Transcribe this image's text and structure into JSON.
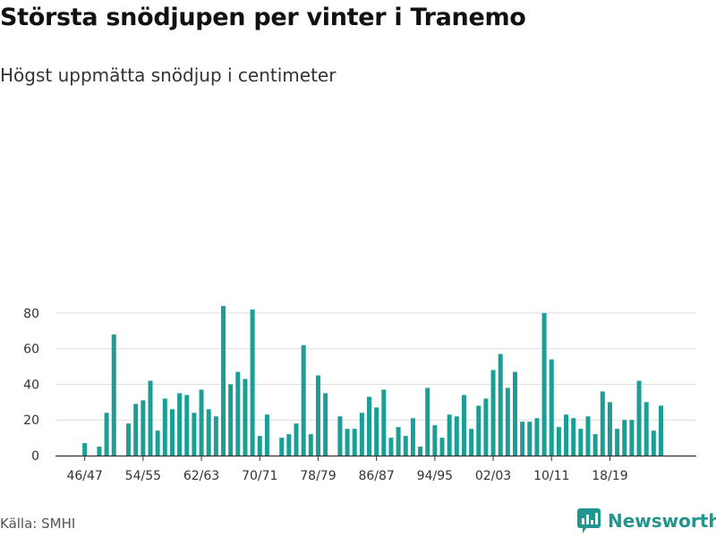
{
  "title": "Största snödjupen per vinter i Tranemo",
  "subtitle": "Högst uppmätta snödjup i centimeter",
  "source": "Källa: SMHI",
  "brand": {
    "name": "Newsworthy",
    "icon": "newsworthy-logo-icon",
    "color": "#21968f"
  },
  "colors": {
    "bar": "#1a9e96",
    "grid": "#dddddd",
    "axis": "#333333"
  },
  "chart_data": {
    "type": "bar",
    "categories": [
      "45/46",
      "46/47",
      "47/48",
      "48/49",
      "49/50",
      "50/51",
      "51/52",
      "52/53",
      "53/54",
      "54/55",
      "55/56",
      "56/57",
      "57/58",
      "58/59",
      "59/60",
      "60/61",
      "61/62",
      "62/63",
      "63/64",
      "64/65",
      "65/66",
      "66/67",
      "67/68",
      "68/69",
      "69/70",
      "70/71",
      "71/72",
      "72/73",
      "73/74",
      "74/75",
      "75/76",
      "76/77",
      "77/78",
      "78/79",
      "79/80",
      "80/81",
      "81/82",
      "82/83",
      "83/84",
      "84/85",
      "85/86",
      "86/87",
      "87/88",
      "88/89",
      "89/90",
      "90/91",
      "91/92",
      "92/93",
      "93/94",
      "94/95",
      "95/96",
      "96/97",
      "97/98",
      "98/99",
      "99/00",
      "00/01",
      "01/02",
      "02/03",
      "03/04",
      "04/05",
      "05/06",
      "06/07",
      "07/08",
      "08/09",
      "09/10",
      "10/11",
      "11/12",
      "12/13",
      "13/14",
      "14/15",
      "15/16",
      "16/17",
      "17/18",
      "18/19",
      "19/20",
      "20/21",
      "21/22",
      "22/23",
      "23/24",
      "24/25",
      "25/26",
      "26/27",
      "27/28",
      "28/29",
      "29/30",
      "30/31",
      "31/32",
      "32/33",
      "33/34",
      "34/35"
    ],
    "values": [
      null,
      7,
      null,
      5,
      24,
      68,
      null,
      18,
      29,
      31,
      42,
      14,
      32,
      26,
      35,
      34,
      24,
      37,
      26,
      22,
      84,
      40,
      47,
      43,
      82,
      11,
      23,
      null,
      10,
      12,
      18,
      62,
      12,
      45,
      35,
      null,
      22,
      15,
      15,
      24,
      33,
      27,
      37,
      10,
      16,
      11,
      21,
      5,
      38,
      17,
      10,
      23,
      22,
      34,
      15,
      28,
      32,
      48,
      57,
      38,
      47,
      19,
      19,
      21,
      80,
      54,
      16,
      23,
      21,
      15,
      22,
      12,
      36,
      30,
      15,
      20,
      20,
      42,
      30,
      14,
      28,
      null,
      null,
      null,
      null,
      null,
      null,
      null,
      null,
      null
    ],
    "xtick_labels": [
      "46/47",
      "54/55",
      "62/63",
      "70/71",
      "78/79",
      "86/87",
      "94/95",
      "02/03",
      "10/11",
      "18/19"
    ],
    "yticks": [
      0,
      20,
      40,
      60,
      80
    ],
    "ylim": [
      0,
      88
    ],
    "grid": true
  }
}
